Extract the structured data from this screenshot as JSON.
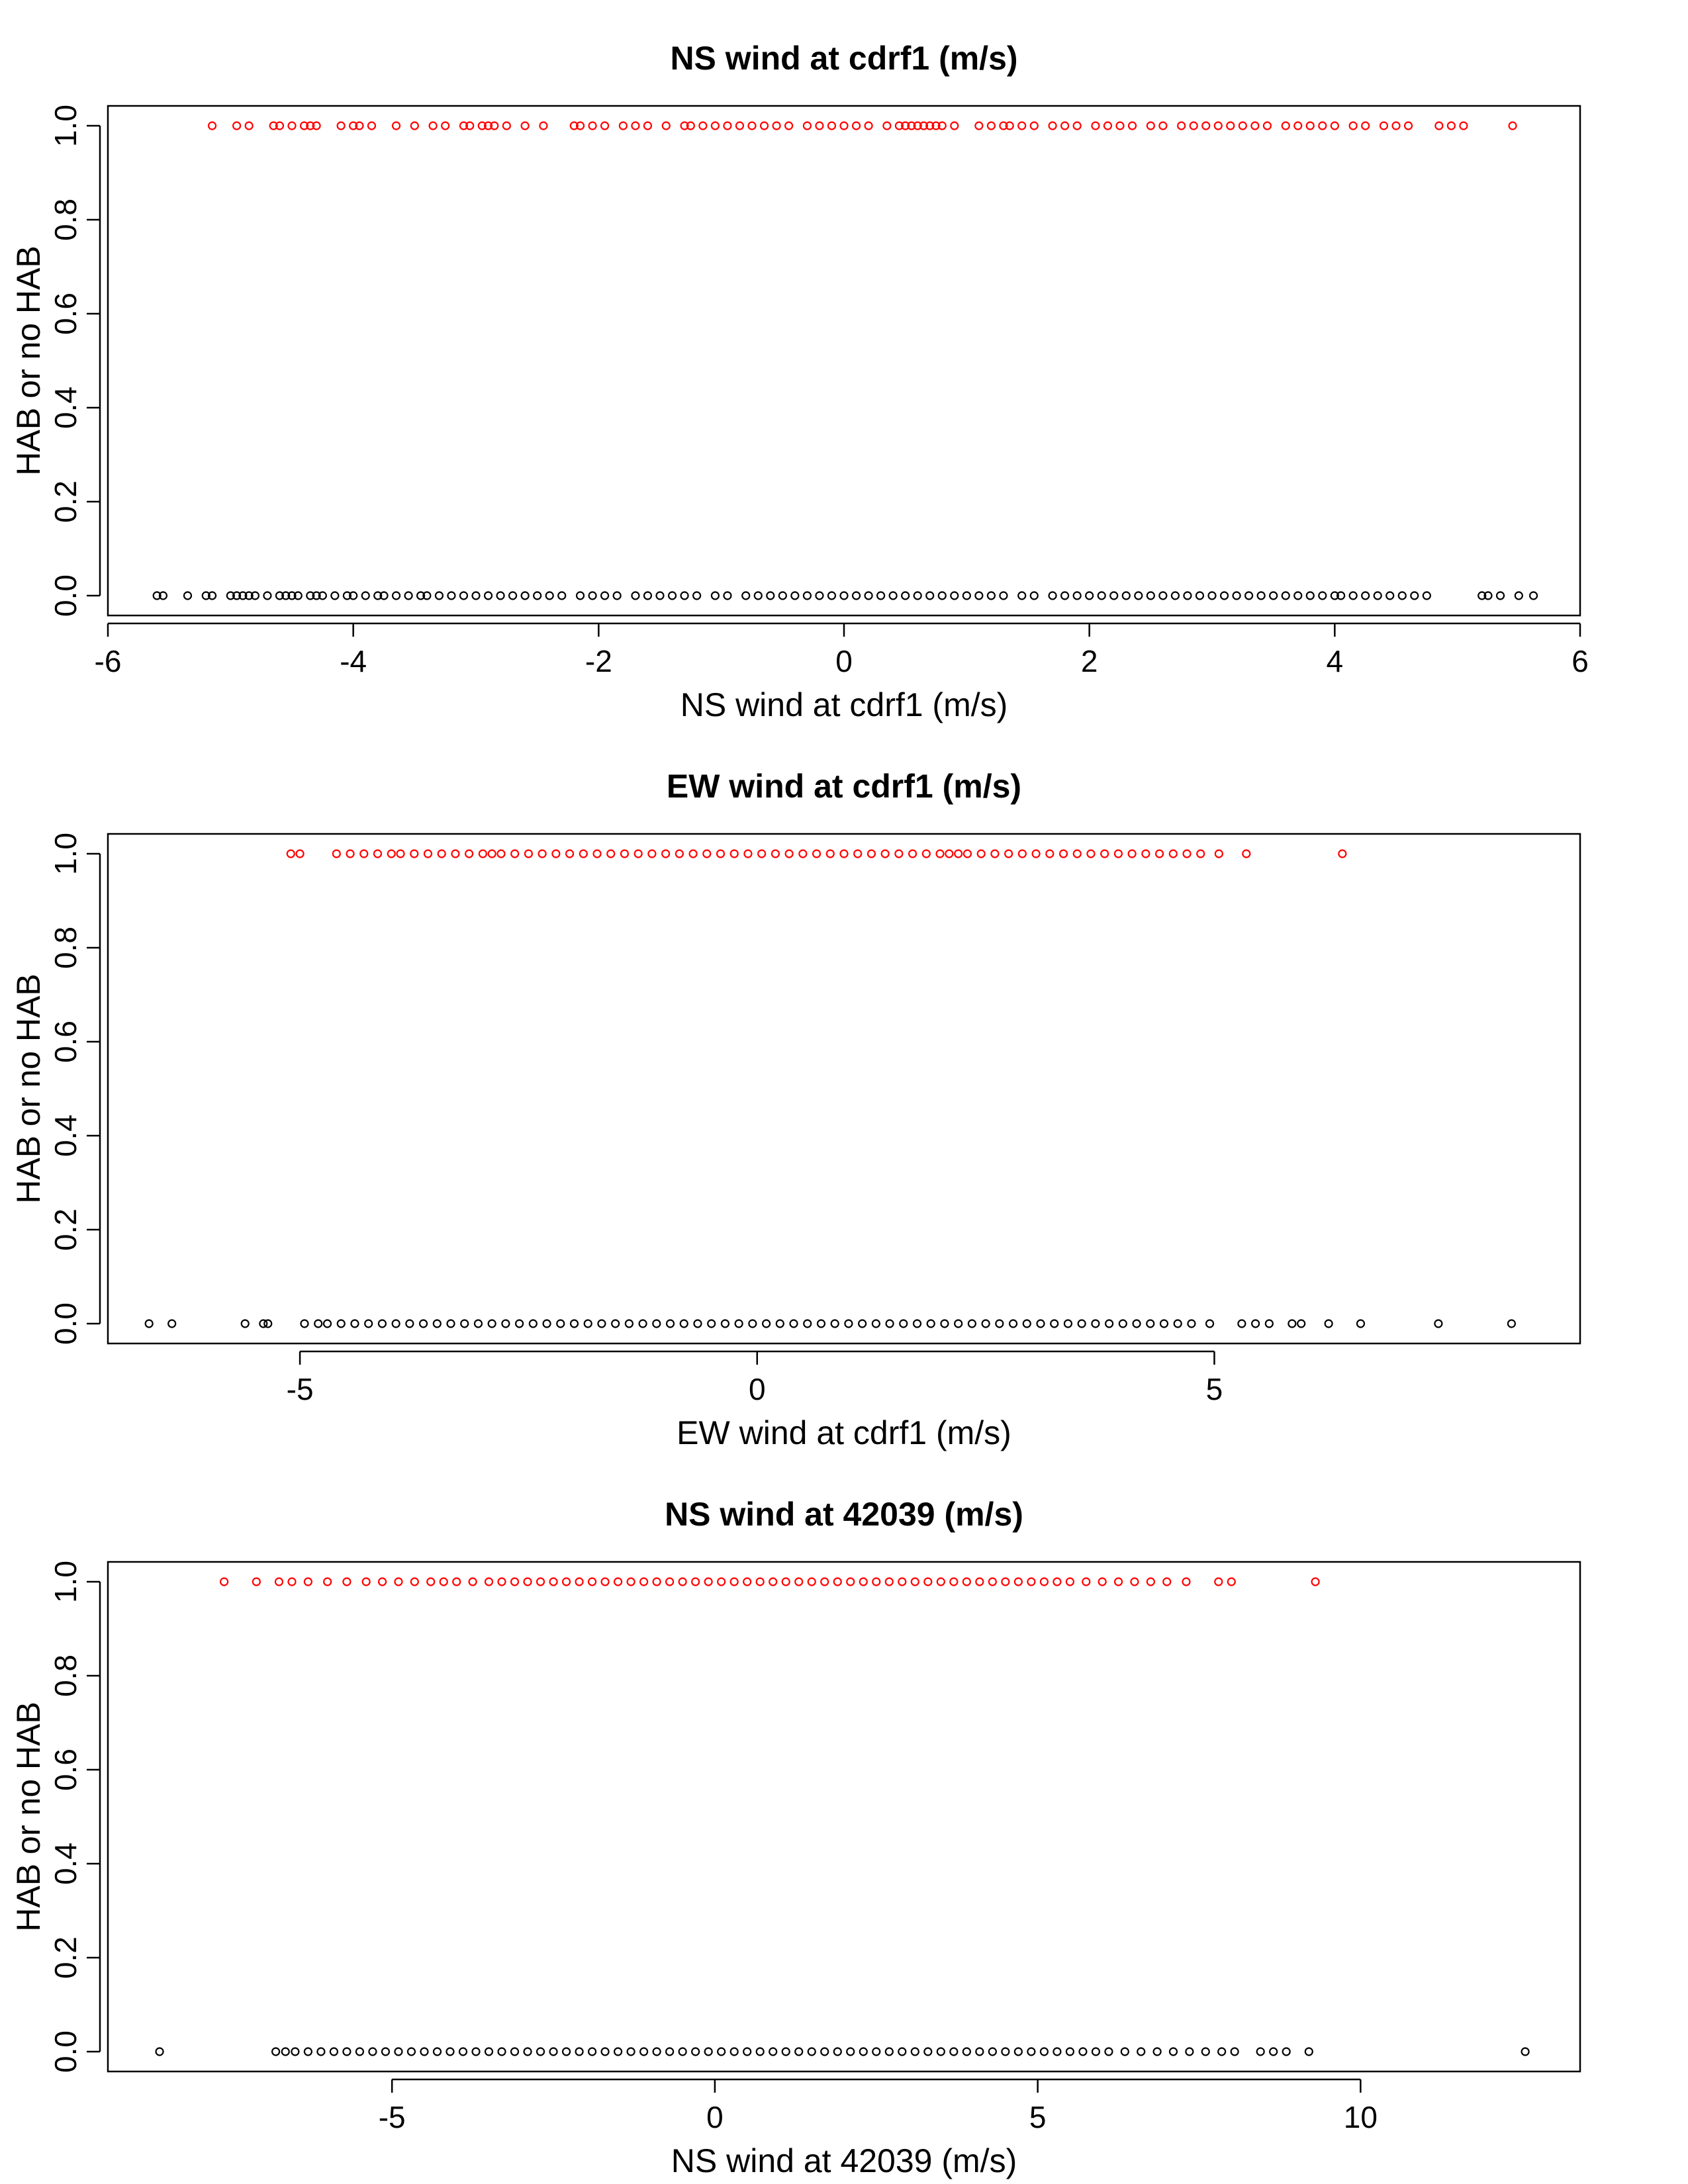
{
  "chart_data": [
    {
      "type": "scatter",
      "title": "NS wind at cdrf1 (m/s)",
      "xlabel": "NS wind at cdrf1 (m/s)",
      "ylabel": "HAB or no HAB",
      "xlim": [
        -6,
        6
      ],
      "ylim": [
        0,
        1
      ],
      "xticks": [
        -6,
        -4,
        -2,
        0,
        2,
        4,
        6
      ],
      "xtick_labels": [
        "-6",
        "-4",
        "-2",
        "0",
        "2",
        "4",
        "6"
      ],
      "yticks": [
        0,
        0.2,
        0.4,
        0.6,
        0.8,
        1
      ],
      "ytick_labels": [
        "0.0",
        "0.2",
        "0.4",
        "0.6",
        "0.8",
        "1.0"
      ],
      "grid": false,
      "series": [
        {
          "color": "#ff0000",
          "y": 1,
          "x": [
            -5.15,
            -4.95,
            -4.85,
            -4.65,
            -4.6,
            -4.5,
            -4.4,
            -4.35,
            -4.3,
            -4.1,
            -4.0,
            -3.95,
            -3.85,
            -3.65,
            -3.5,
            -3.35,
            -3.25,
            -3.1,
            -3.05,
            -2.95,
            -2.9,
            -2.85,
            -2.75,
            -2.6,
            -2.45,
            -2.2,
            -2.15,
            -2.05,
            -1.95,
            -1.8,
            -1.7,
            -1.6,
            -1.45,
            -1.3,
            -1.25,
            -1.15,
            -1.05,
            -0.95,
            -0.85,
            -0.75,
            -0.65,
            -0.55,
            -0.45,
            -0.3,
            -0.2,
            -0.1,
            0.0,
            0.1,
            0.2,
            0.35,
            0.45,
            0.5,
            0.55,
            0.6,
            0.65,
            0.7,
            0.75,
            0.8,
            0.9,
            1.1,
            1.2,
            1.3,
            1.35,
            1.45,
            1.55,
            1.7,
            1.8,
            1.9,
            2.05,
            2.15,
            2.25,
            2.35,
            2.5,
            2.6,
            2.75,
            2.85,
            2.95,
            3.05,
            3.15,
            3.25,
            3.35,
            3.45,
            3.6,
            3.7,
            3.8,
            3.9,
            4.0,
            4.15,
            4.25,
            4.4,
            4.5,
            4.6,
            4.85,
            4.95,
            5.05,
            5.45
          ]
        },
        {
          "color": "#000000",
          "y": 0,
          "x": [
            -5.6,
            -5.55,
            -5.35,
            -5.2,
            -5.15,
            -5.0,
            -4.95,
            -4.9,
            -4.85,
            -4.8,
            -4.7,
            -4.6,
            -4.55,
            -4.5,
            -4.45,
            -4.35,
            -4.3,
            -4.25,
            -4.15,
            -4.05,
            -4.0,
            -3.9,
            -3.8,
            -3.75,
            -3.65,
            -3.55,
            -3.45,
            -3.4,
            -3.3,
            -3.2,
            -3.1,
            -3.0,
            -2.9,
            -2.8,
            -2.7,
            -2.6,
            -2.5,
            -2.4,
            -2.3,
            -2.15,
            -2.05,
            -1.95,
            -1.85,
            -1.7,
            -1.6,
            -1.5,
            -1.4,
            -1.3,
            -1.2,
            -1.05,
            -0.95,
            -0.8,
            -0.7,
            -0.6,
            -0.5,
            -0.4,
            -0.3,
            -0.2,
            -0.1,
            0.0,
            0.1,
            0.2,
            0.3,
            0.4,
            0.5,
            0.6,
            0.7,
            0.8,
            0.9,
            1.0,
            1.1,
            1.2,
            1.3,
            1.45,
            1.55,
            1.7,
            1.8,
            1.9,
            2.0,
            2.1,
            2.2,
            2.3,
            2.4,
            2.5,
            2.6,
            2.7,
            2.8,
            2.9,
            3.0,
            3.1,
            3.2,
            3.3,
            3.4,
            3.5,
            3.6,
            3.7,
            3.8,
            3.9,
            4.0,
            4.05,
            4.15,
            4.25,
            4.35,
            4.45,
            4.55,
            4.65,
            4.75,
            5.2,
            5.25,
            5.35,
            5.5,
            5.62
          ]
        }
      ]
    },
    {
      "type": "scatter",
      "title": "EW wind at cdrf1 (m/s)",
      "xlabel": "EW wind at cdrf1 (m/s)",
      "ylabel": "HAB or no HAB",
      "xlim": [
        -7.1,
        9.0
      ],
      "ylim": [
        0,
        1
      ],
      "xticks": [
        -5,
        0,
        5
      ],
      "xtick_labels": [
        "-5",
        "0",
        "5"
      ],
      "yticks": [
        0,
        0.2,
        0.4,
        0.6,
        0.8,
        1
      ],
      "ytick_labels": [
        "0.0",
        "0.2",
        "0.4",
        "0.6",
        "0.8",
        "1.0"
      ],
      "grid": false,
      "series": [
        {
          "color": "#ff0000",
          "y": 1,
          "x": [
            -5.1,
            -5.0,
            -4.6,
            -4.45,
            -4.3,
            -4.15,
            -4.0,
            -3.9,
            -3.75,
            -3.6,
            -3.45,
            -3.3,
            -3.15,
            -3.0,
            -2.9,
            -2.8,
            -2.65,
            -2.5,
            -2.35,
            -2.2,
            -2.05,
            -1.9,
            -1.75,
            -1.6,
            -1.45,
            -1.3,
            -1.15,
            -1.0,
            -0.85,
            -0.7,
            -0.55,
            -0.4,
            -0.25,
            -0.1,
            0.05,
            0.2,
            0.35,
            0.5,
            0.65,
            0.8,
            0.95,
            1.1,
            1.25,
            1.4,
            1.55,
            1.7,
            1.85,
            2.0,
            2.1,
            2.2,
            2.3,
            2.45,
            2.6,
            2.75,
            2.9,
            3.05,
            3.2,
            3.35,
            3.5,
            3.65,
            3.8,
            3.95,
            4.1,
            4.25,
            4.4,
            4.55,
            4.7,
            4.85,
            5.05,
            5.35,
            6.4
          ]
        },
        {
          "color": "#000000",
          "y": 0,
          "x": [
            -6.65,
            -6.4,
            -5.6,
            -5.4,
            -5.35,
            -4.95,
            -4.8,
            -4.7,
            -4.55,
            -4.4,
            -4.25,
            -4.1,
            -3.95,
            -3.8,
            -3.65,
            -3.5,
            -3.35,
            -3.2,
            -3.05,
            -2.9,
            -2.75,
            -2.6,
            -2.45,
            -2.3,
            -2.15,
            -2.0,
            -1.85,
            -1.7,
            -1.55,
            -1.4,
            -1.25,
            -1.1,
            -0.95,
            -0.8,
            -0.65,
            -0.5,
            -0.35,
            -0.2,
            -0.05,
            0.1,
            0.25,
            0.4,
            0.55,
            0.7,
            0.85,
            1.0,
            1.15,
            1.3,
            1.45,
            1.6,
            1.75,
            1.9,
            2.05,
            2.2,
            2.35,
            2.5,
            2.65,
            2.8,
            2.95,
            3.1,
            3.25,
            3.4,
            3.55,
            3.7,
            3.85,
            4.0,
            4.15,
            4.3,
            4.45,
            4.6,
            4.75,
            4.95,
            5.3,
            5.45,
            5.6,
            5.85,
            5.95,
            6.25,
            6.6,
            7.45,
            8.25
          ]
        }
      ]
    },
    {
      "type": "scatter",
      "title": "NS wind at 42039 (m/s)",
      "xlabel": "NS wind at 42039 (m/s)",
      "ylabel": "HAB or no HAB",
      "xlim": [
        -9.4,
        13.4
      ],
      "ylim": [
        0,
        1
      ],
      "xticks": [
        -5,
        0,
        5,
        10
      ],
      "xtick_labels": [
        "-5",
        "0",
        "5",
        "10"
      ],
      "yticks": [
        0,
        0.2,
        0.4,
        0.6,
        0.8,
        1
      ],
      "ytick_labels": [
        "0.0",
        "0.2",
        "0.4",
        "0.6",
        "0.8",
        "1.0"
      ],
      "grid": false,
      "series": [
        {
          "color": "#ff0000",
          "y": 1,
          "x": [
            -7.6,
            -7.1,
            -6.75,
            -6.55,
            -6.3,
            -6.0,
            -5.7,
            -5.4,
            -5.15,
            -4.9,
            -4.65,
            -4.4,
            -4.2,
            -4.0,
            -3.75,
            -3.5,
            -3.3,
            -3.1,
            -2.9,
            -2.7,
            -2.5,
            -2.3,
            -2.1,
            -1.9,
            -1.7,
            -1.5,
            -1.3,
            -1.1,
            -0.9,
            -0.7,
            -0.5,
            -0.3,
            -0.1,
            0.1,
            0.3,
            0.5,
            0.7,
            0.9,
            1.1,
            1.3,
            1.5,
            1.7,
            1.9,
            2.1,
            2.3,
            2.5,
            2.7,
            2.9,
            3.1,
            3.3,
            3.5,
            3.7,
            3.9,
            4.1,
            4.3,
            4.5,
            4.7,
            4.9,
            5.1,
            5.3,
            5.5,
            5.75,
            6.0,
            6.25,
            6.5,
            6.75,
            7.0,
            7.3,
            7.8,
            8.0,
            9.3
          ]
        },
        {
          "color": "#000000",
          "y": 0,
          "x": [
            -8.6,
            -6.8,
            -6.65,
            -6.5,
            -6.3,
            -6.1,
            -5.9,
            -5.7,
            -5.5,
            -5.3,
            -5.1,
            -4.9,
            -4.7,
            -4.5,
            -4.3,
            -4.1,
            -3.9,
            -3.7,
            -3.5,
            -3.3,
            -3.1,
            -2.9,
            -2.7,
            -2.5,
            -2.3,
            -2.1,
            -1.9,
            -1.7,
            -1.5,
            -1.3,
            -1.1,
            -0.9,
            -0.7,
            -0.5,
            -0.3,
            -0.1,
            0.1,
            0.3,
            0.5,
            0.7,
            0.9,
            1.1,
            1.3,
            1.5,
            1.7,
            1.9,
            2.1,
            2.3,
            2.5,
            2.7,
            2.9,
            3.1,
            3.3,
            3.5,
            3.7,
            3.9,
            4.1,
            4.3,
            4.5,
            4.7,
            4.9,
            5.1,
            5.3,
            5.5,
            5.7,
            5.9,
            6.1,
            6.35,
            6.6,
            6.85,
            7.1,
            7.35,
            7.6,
            7.85,
            8.05,
            8.45,
            8.65,
            8.85,
            9.2,
            12.55
          ]
        }
      ]
    }
  ]
}
